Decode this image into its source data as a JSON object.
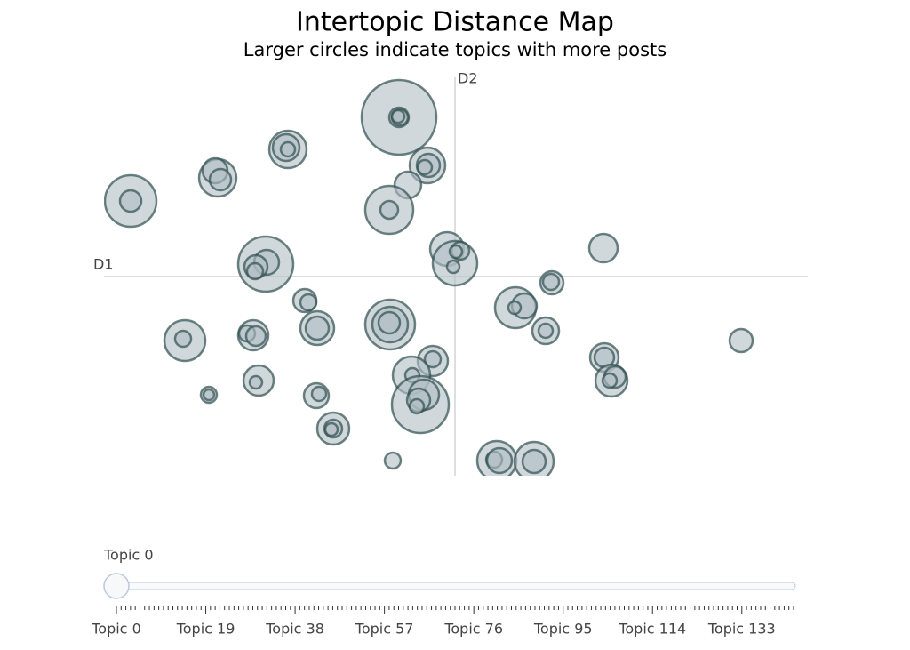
{
  "chart_data": {
    "type": "bubble",
    "title": "Intertopic Distance Map",
    "subtitle": "Larger circles indicate topics with more posts",
    "x_label": "D1",
    "y_label": "D2",
    "color": "#B0BEC5",
    "line_color": "#2F4F4F",
    "xlim": [
      -395,
      397
    ],
    "ylim": [
      -224,
      224
    ],
    "x": [
      -63,
      -63,
      -62,
      -64,
      -188,
      -190,
      -188,
      -31,
      -30,
      -34,
      -53,
      -267,
      -270,
      -264,
      -365,
      -365,
      -74,
      -74,
      -9,
      0,
      6,
      1,
      -2,
      -213,
      -212,
      -224,
      -225,
      167,
      109,
      108,
      -169,
      -165,
      68,
      78,
      67,
      -73,
      -73,
      -74,
      -155,
      -155,
      -304,
      -306,
      -227,
      -234,
      -224,
      102,
      102,
      322,
      -25,
      -25,
      168,
      168,
      176,
      180,
      174,
      -49,
      -48,
      -221,
      -224,
      -156,
      -153,
      -277,
      -277,
      -39,
      -35,
      -41,
      -43,
      -137,
      -137,
      -139,
      -70,
      47,
      44,
      50,
      89,
      89
    ],
    "values": [
      179,
      179,
      179,
      180,
      143,
      145,
      143,
      125,
      125,
      123,
      103,
      111,
      119,
      109,
      85,
      85,
      75,
      75,
      31,
      15,
      29,
      28,
      11,
      14,
      16,
      11,
      6,
      32,
      -7,
      -6,
      -27,
      -29,
      -35,
      -33,
      -35,
      -54,
      -54,
      -52,
      -58,
      -58,
      -72,
      -70,
      -66,
      -64,
      -67,
      -61,
      -61,
      -72,
      -95,
      -93,
      -91,
      -91,
      -117,
      -113,
      -117,
      -111,
      -111,
      -117,
      -119,
      -134,
      -132,
      -133,
      -133,
      -144,
      -133,
      -139,
      -146,
      -171,
      -171,
      -172,
      -207,
      -207,
      -206,
      -207,
      -208,
      -208
    ],
    "sizes": [
      84,
      22,
      18,
      14,
      42,
      30,
      16,
      40,
      26,
      16,
      30,
      42,
      28,
      24,
      58,
      24,
      54,
      20,
      38,
      50,
      20,
      14,
      14,
      62,
      28,
      26,
      18,
      32,
      26,
      18,
      26,
      18,
      46,
      28,
      14,
      56,
      40,
      24,
      38,
      26,
      46,
      18,
      34,
      18,
      22,
      30,
      16,
      26,
      34,
      18,
      32,
      22,
      36,
      24,
      16,
      42,
      16,
      34,
      14,
      28,
      16,
      18,
      12,
      64,
      34,
      26,
      16,
      36,
      20,
      14,
      18,
      44,
      18,
      28,
      44,
      26
    ],
    "slider": {
      "active": 0,
      "current_value": "Topic 0",
      "steps": [
        "Topic 0",
        null,
        null,
        null,
        null,
        null,
        null,
        null,
        null,
        null,
        null,
        null,
        null,
        null,
        null,
        null,
        null,
        null,
        null,
        "Topic 19",
        null,
        null,
        null,
        null,
        null,
        null,
        null,
        null,
        null,
        null,
        null,
        null,
        null,
        null,
        null,
        null,
        null,
        null,
        "Topic 38",
        null,
        null,
        null,
        null,
        null,
        null,
        null,
        null,
        null,
        null,
        null,
        null,
        null,
        null,
        null,
        null,
        null,
        null,
        "Topic 57",
        null,
        null,
        null,
        null,
        null,
        null,
        null,
        null,
        null,
        null,
        null,
        null,
        null,
        null,
        null,
        null,
        null,
        null,
        "Topic 76",
        null,
        null,
        null,
        null,
        null,
        null,
        null,
        null,
        null,
        null,
        null,
        null,
        null,
        null,
        null,
        null,
        null,
        null,
        "Topic 95",
        null,
        null,
        null,
        null,
        null,
        null,
        null,
        null,
        null,
        null,
        null,
        null,
        null,
        null,
        null,
        null,
        null,
        null,
        "Topic 114",
        null,
        null,
        null,
        null,
        null,
        null,
        null,
        null,
        null,
        null,
        null,
        null,
        null,
        null,
        null,
        null,
        null,
        null,
        "Topic 133",
        null,
        null,
        null,
        null,
        null,
        null,
        null,
        null,
        null,
        null,
        null
      ]
    }
  }
}
